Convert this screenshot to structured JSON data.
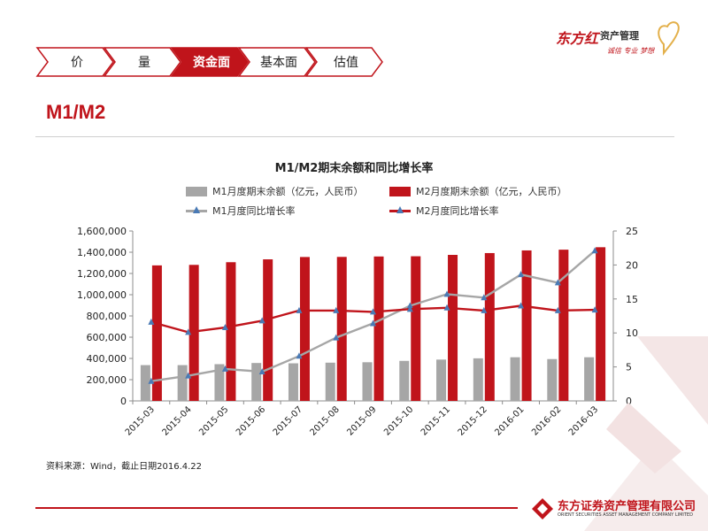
{
  "nav": {
    "items": [
      {
        "label": "价",
        "active": false
      },
      {
        "label": "量",
        "active": false
      },
      {
        "label": "资金面",
        "active": true
      },
      {
        "label": "基本面",
        "active": false
      },
      {
        "label": "估值",
        "active": false
      }
    ]
  },
  "brand": {
    "name": "东方红",
    "sub": "资产管理",
    "slogan": "诚信 专业 梦想",
    "footer_name": "东方证券资产管理有限公司",
    "footer_en": "ORIENT SECURITIES ASSET MANAGEMENT COMPANY LIMITED"
  },
  "page_title": "M1/M2",
  "source": "资料来源：Wind，截止日期2016.4.22",
  "colors": {
    "accent": "#c0141b",
    "m1_bar": "#a6a6a6",
    "m1_line": "#a6a6a6",
    "m2_bar": "#c0141b",
    "m2_line": "#c0141b",
    "marker": "#4a7ab5"
  },
  "chart_data": {
    "type": "bar",
    "title": "M1/M2期末余额和同比增长率",
    "categories": [
      "2015-03",
      "2015-04",
      "2015-05",
      "2015-06",
      "2015-07",
      "2015-08",
      "2015-09",
      "2015-10",
      "2015-11",
      "2015-12",
      "2016-01",
      "2016-02",
      "2016-03"
    ],
    "series": [
      {
        "name": "M1月度期末余额（亿元，人民币）",
        "type": "bar",
        "axis": "left",
        "values": [
          337000,
          337000,
          346000,
          357000,
          354000,
          360000,
          364000,
          377000,
          389000,
          401000,
          411000,
          394000,
          411000
        ]
      },
      {
        "name": "M2月度期末余额（亿元，人民币）",
        "type": "bar",
        "axis": "left",
        "values": [
          1276000,
          1281000,
          1306000,
          1333000,
          1355000,
          1356000,
          1360000,
          1362000,
          1375000,
          1392000,
          1417000,
          1424000,
          1447000
        ]
      },
      {
        "name": "M1月度同比增长率",
        "type": "line",
        "axis": "right",
        "values": [
          2.9,
          3.7,
          4.7,
          4.3,
          6.6,
          9.3,
          11.4,
          14.0,
          15.7,
          15.2,
          18.6,
          17.4,
          22.1
        ]
      },
      {
        "name": "M2月度同比增长率",
        "type": "line",
        "axis": "right",
        "values": [
          11.6,
          10.1,
          10.8,
          11.8,
          13.3,
          13.3,
          13.1,
          13.5,
          13.7,
          13.3,
          14.0,
          13.3,
          13.4
        ]
      }
    ],
    "y_left": {
      "min": 0,
      "max": 1600000,
      "step": 200000,
      "ticks": [
        "0",
        "200,000",
        "400,000",
        "600,000",
        "800,000",
        "1,000,000",
        "1,200,000",
        "1,400,000",
        "1,600,000"
      ]
    },
    "y_right": {
      "min": 0,
      "max": 25,
      "step": 5,
      "ticks": [
        "0",
        "5",
        "10",
        "15",
        "20",
        "25"
      ]
    },
    "legend_position": "top",
    "grid": false
  }
}
